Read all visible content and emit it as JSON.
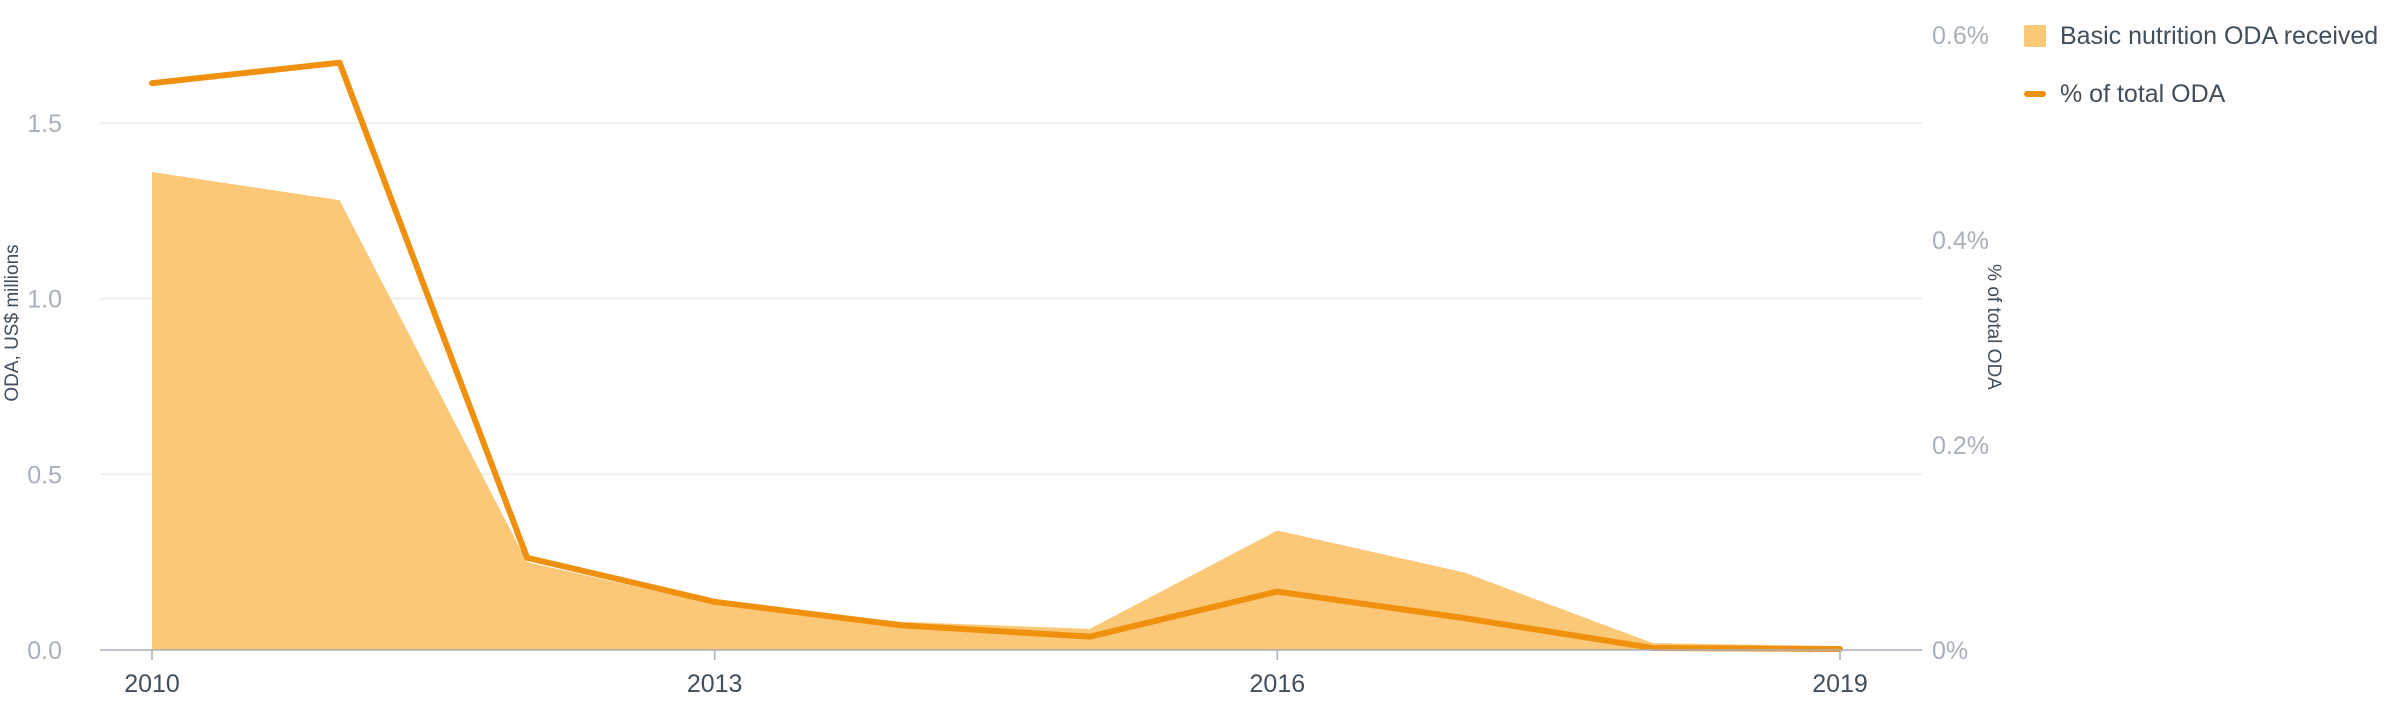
{
  "chart_data": {
    "type": "area",
    "title": "",
    "x": [
      2010,
      2011,
      2012,
      2013,
      2014,
      2015,
      2016,
      2017,
      2018,
      2019
    ],
    "xticks": [
      "2010",
      "2013",
      "2016",
      "2019"
    ],
    "xlabel": "",
    "ylabel": "ODA, US$ millions",
    "ylabel_right": "% of total ODA",
    "ylim": [
      0,
      1.75
    ],
    "ylim_right": [
      0,
      0.6
    ],
    "yticks": [
      "0.0",
      "0.5",
      "1.0",
      "1.5"
    ],
    "yticks_right": [
      "0%",
      "0.2%",
      "0.4%",
      "0.6%"
    ],
    "grid": true,
    "legend_position": "top-right",
    "series": [
      {
        "name": "Basic nutrition ODA received",
        "type": "area",
        "axis": "left",
        "color": "#fbc878",
        "values": [
          1.36,
          1.28,
          0.25,
          0.13,
          0.08,
          0.06,
          0.34,
          0.22,
          0.02,
          0.01
        ]
      },
      {
        "name": "% of total ODA",
        "type": "line",
        "axis": "right",
        "color": "#f0900f",
        "values": [
          0.553,
          0.573,
          0.09,
          0.047,
          0.024,
          0.013,
          0.057,
          0.031,
          0.002,
          0.001
        ]
      }
    ]
  },
  "legend": {
    "items": [
      {
        "label": "Basic nutrition ODA received",
        "color": "#fbc878"
      },
      {
        "label": "% of total ODA",
        "color": "#f0900f"
      }
    ]
  },
  "colors": {
    "axis_tick": "#a9b0ba",
    "axis_label": "#414e5b",
    "x_tick": "#414e5b",
    "grid": "#ececec",
    "baseline": "#a9b0ba"
  }
}
